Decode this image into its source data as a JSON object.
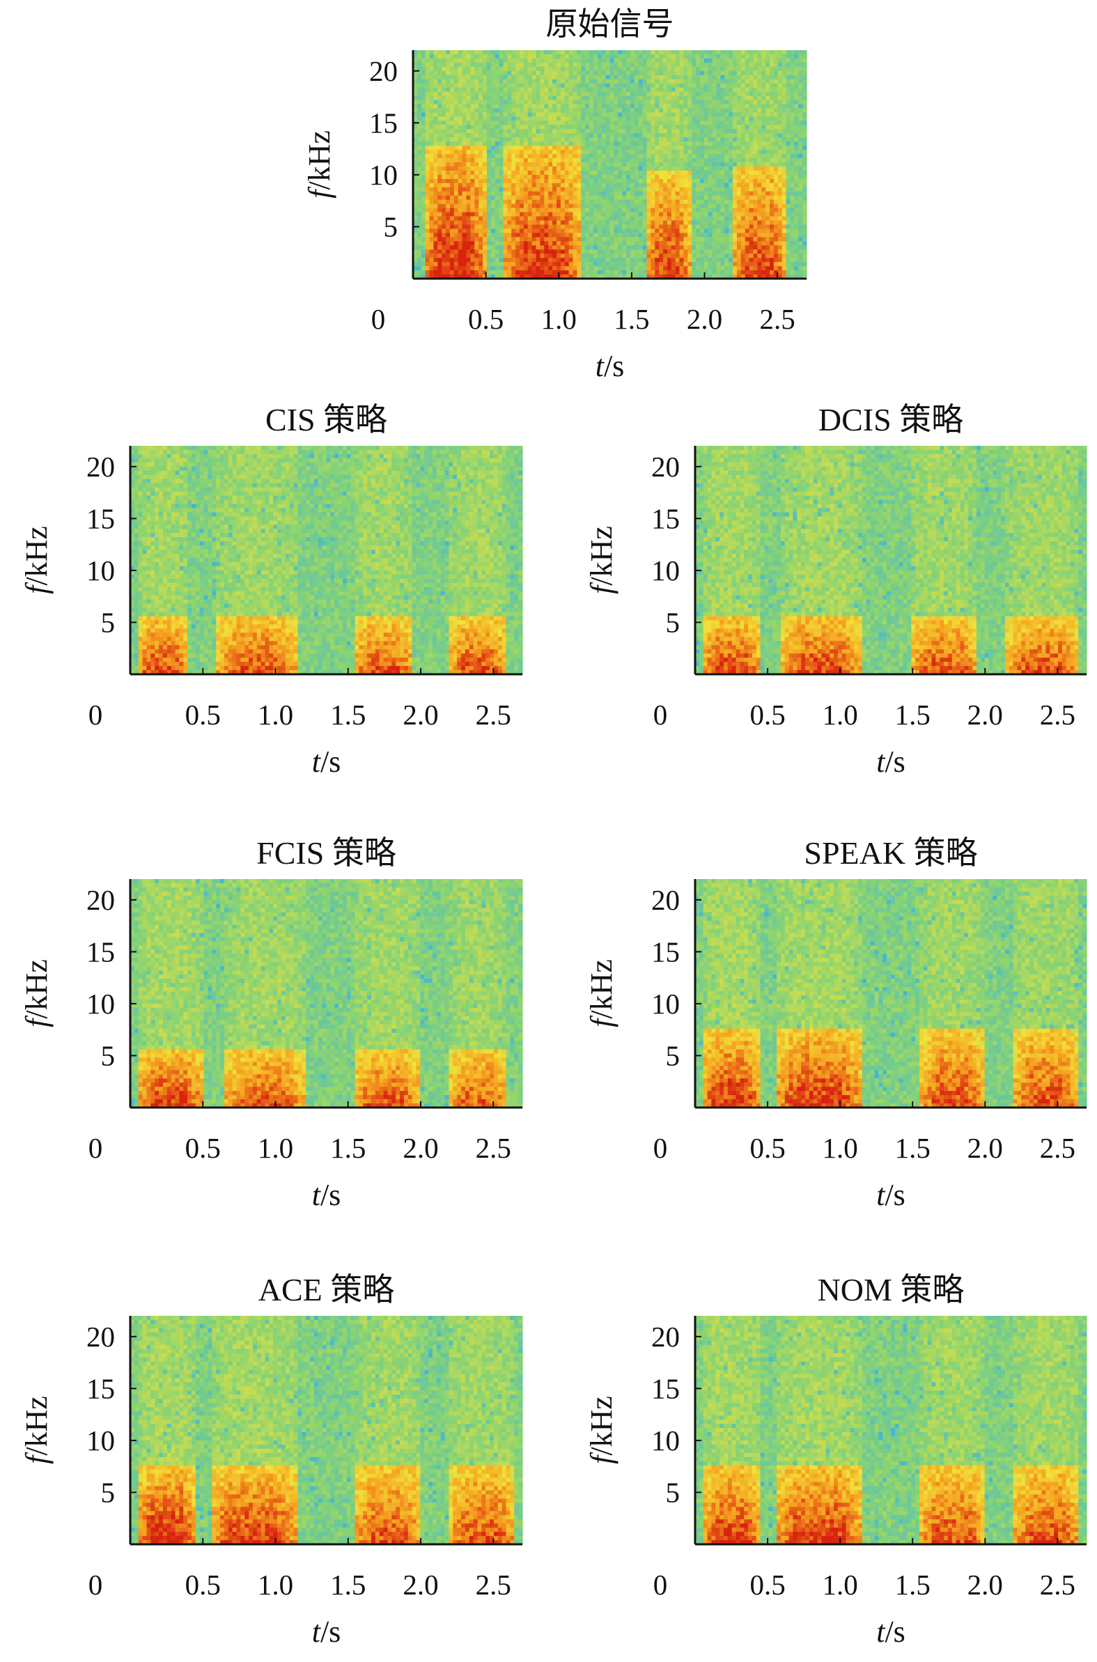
{
  "chart_data": [
    {
      "type": "heatmap",
      "title": "原始信号",
      "xlabel": "t/s",
      "ylabel": "f/kHz",
      "xlim": [
        0,
        2.7
      ],
      "ylim": [
        0,
        22
      ],
      "xticks": [
        "0",
        "0.5",
        "1.0",
        "1.5",
        "2.0",
        "2.5"
      ],
      "yticks": [
        "5",
        "10",
        "15",
        "20"
      ],
      "colormap": [
        "#3a5fc8",
        "#44b7d3",
        "#88d374",
        "#f1e23a",
        "#f5a020",
        "#d8230f"
      ],
      "bursts": [
        {
          "t0": 0.08,
          "t1": 0.5,
          "fmax": 13,
          "intensity": 1.0
        },
        {
          "t0": 0.62,
          "t1": 1.15,
          "fmax": 13,
          "intensity": 0.95
        },
        {
          "t0": 1.6,
          "t1": 1.9,
          "fmax": 10.5,
          "intensity": 0.9
        },
        {
          "t0": 2.2,
          "t1": 2.55,
          "fmax": 11,
          "intensity": 0.9
        }
      ]
    },
    {
      "type": "heatmap",
      "title": "CIS 策略",
      "xlabel": "t/s",
      "ylabel": "f/kHz",
      "xlim": [
        0,
        2.7
      ],
      "ylim": [
        0,
        22
      ],
      "xticks": [
        "0",
        "0.5",
        "1.0",
        "1.5",
        "2.0",
        "2.5"
      ],
      "yticks": [
        "5",
        "10",
        "15",
        "20"
      ],
      "colormap": [
        "#3a5fc8",
        "#44b7d3",
        "#88d374",
        "#f1e23a",
        "#f5a020",
        "#d8230f"
      ],
      "bursts": [
        {
          "t0": 0.05,
          "t1": 0.4,
          "fmax": 5.5,
          "intensity": 0.9
        },
        {
          "t0": 0.6,
          "t1": 1.15,
          "fmax": 5.5,
          "intensity": 0.85
        },
        {
          "t0": 1.55,
          "t1": 1.95,
          "fmax": 5.5,
          "intensity": 0.85
        },
        {
          "t0": 2.2,
          "t1": 2.6,
          "fmax": 5.5,
          "intensity": 0.85
        }
      ]
    },
    {
      "type": "heatmap",
      "title": "DCIS 策略",
      "xlabel": "t/s",
      "ylabel": "f/kHz",
      "xlim": [
        0,
        2.7
      ],
      "ylim": [
        0,
        22
      ],
      "xticks": [
        "0",
        "0.5",
        "1.0",
        "1.5",
        "2.0",
        "2.5"
      ],
      "yticks": [
        "5",
        "10",
        "15",
        "20"
      ],
      "colormap": [
        "#3a5fc8",
        "#44b7d3",
        "#88d374",
        "#f1e23a",
        "#f5a020",
        "#d8230f"
      ],
      "bursts": [
        {
          "t0": 0.05,
          "t1": 0.45,
          "fmax": 5.5,
          "intensity": 0.9
        },
        {
          "t0": 0.6,
          "t1": 1.15,
          "fmax": 5.5,
          "intensity": 0.9
        },
        {
          "t0": 1.5,
          "t1": 1.95,
          "fmax": 5.5,
          "intensity": 0.85
        },
        {
          "t0": 2.15,
          "t1": 2.65,
          "fmax": 5.5,
          "intensity": 0.85
        }
      ]
    },
    {
      "type": "heatmap",
      "title": "FCIS 策略",
      "xlabel": "t/s",
      "ylabel": "f/kHz",
      "xlim": [
        0,
        2.7
      ],
      "ylim": [
        0,
        22
      ],
      "xticks": [
        "0",
        "0.5",
        "1.0",
        "1.5",
        "2.0",
        "2.5"
      ],
      "yticks": [
        "5",
        "10",
        "15",
        "20"
      ],
      "colormap": [
        "#3a5fc8",
        "#44b7d3",
        "#88d374",
        "#f1e23a",
        "#f5a020",
        "#d8230f"
      ],
      "bursts": [
        {
          "t0": 0.05,
          "t1": 0.5,
          "fmax": 5.5,
          "intensity": 0.95
        },
        {
          "t0": 0.65,
          "t1": 1.2,
          "fmax": 5.5,
          "intensity": 0.85
        },
        {
          "t0": 1.55,
          "t1": 2.0,
          "fmax": 5.5,
          "intensity": 0.85
        },
        {
          "t0": 2.2,
          "t1": 2.6,
          "fmax": 5.5,
          "intensity": 0.8
        }
      ]
    },
    {
      "type": "heatmap",
      "title": "SPEAK 策略",
      "xlabel": "t/s",
      "ylabel": "f/kHz",
      "xlim": [
        0,
        2.7
      ],
      "ylim": [
        0,
        22
      ],
      "xticks": [
        "0",
        "0.5",
        "1.0",
        "1.5",
        "2.0",
        "2.5"
      ],
      "yticks": [
        "5",
        "10",
        "15",
        "20"
      ],
      "colormap": [
        "#3a5fc8",
        "#44b7d3",
        "#88d374",
        "#f1e23a",
        "#f5a020",
        "#d8230f"
      ],
      "bursts": [
        {
          "t0": 0.05,
          "t1": 0.45,
          "fmax": 7.5,
          "intensity": 0.95
        },
        {
          "t0": 0.55,
          "t1": 1.15,
          "fmax": 7.5,
          "intensity": 0.95
        },
        {
          "t0": 1.55,
          "t1": 2.0,
          "fmax": 7.5,
          "intensity": 0.85
        },
        {
          "t0": 2.2,
          "t1": 2.65,
          "fmax": 7.5,
          "intensity": 0.85
        }
      ]
    },
    {
      "type": "heatmap",
      "title": "ACE 策略",
      "xlabel": "t/s",
      "ylabel": "f/kHz",
      "xlim": [
        0,
        2.7
      ],
      "ylim": [
        0,
        22
      ],
      "xticks": [
        "0",
        "0.5",
        "1.0",
        "1.5",
        "2.0",
        "2.5"
      ],
      "yticks": [
        "5",
        "10",
        "15",
        "20"
      ],
      "colormap": [
        "#3a5fc8",
        "#44b7d3",
        "#88d374",
        "#f1e23a",
        "#f5a020",
        "#d8230f"
      ],
      "bursts": [
        {
          "t0": 0.05,
          "t1": 0.45,
          "fmax": 7.5,
          "intensity": 1.0
        },
        {
          "t0": 0.55,
          "t1": 1.15,
          "fmax": 7.5,
          "intensity": 0.95
        },
        {
          "t0": 1.55,
          "t1": 2.0,
          "fmax": 7.5,
          "intensity": 0.85
        },
        {
          "t0": 2.2,
          "t1": 2.65,
          "fmax": 7.5,
          "intensity": 0.85
        }
      ]
    },
    {
      "type": "heatmap",
      "title": "NOM 策略",
      "xlabel": "t/s",
      "ylabel": "f/kHz",
      "xlim": [
        0,
        2.7
      ],
      "ylim": [
        0,
        22
      ],
      "xticks": [
        "0",
        "0.5",
        "1.0",
        "1.5",
        "2.0",
        "2.5"
      ],
      "yticks": [
        "5",
        "10",
        "15",
        "20"
      ],
      "colormap": [
        "#3a5fc8",
        "#44b7d3",
        "#88d374",
        "#f1e23a",
        "#f5a020",
        "#d8230f"
      ],
      "bursts": [
        {
          "t0": 0.05,
          "t1": 0.45,
          "fmax": 7.5,
          "intensity": 0.95
        },
        {
          "t0": 0.55,
          "t1": 1.15,
          "fmax": 7.5,
          "intensity": 0.95
        },
        {
          "t0": 1.55,
          "t1": 2.0,
          "fmax": 7.5,
          "intensity": 0.85
        },
        {
          "t0": 2.2,
          "t1": 2.65,
          "fmax": 7.5,
          "intensity": 0.85
        }
      ]
    }
  ]
}
